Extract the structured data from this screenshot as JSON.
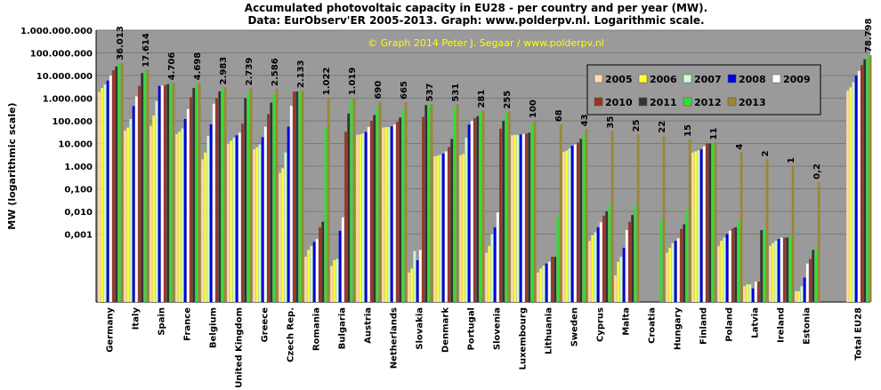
{
  "title_line1": "Accumulated photovoltaic capacity in EU28 - per country and per year (MW).",
  "title_line2": "Data: EurObserv'ER 2005-2013. Graph: www.polderpv.nl. Logarithmic scale.",
  "chart_data": {
    "type": "bar",
    "yscale": "log",
    "ylim": [
      0.001,
      1000000000
    ],
    "ylabel": "MW (logarithmic scale)",
    "yticks": [
      "1.000.000,000",
      "100.000,000",
      "10.000,000",
      "1.000,000",
      "100,000",
      "10,000",
      "1,000",
      "0,100",
      "0,010",
      "0,001"
    ],
    "yticks_raw": [
      "1.000.000.000",
      "100.000.000",
      "10.000.000",
      "1.000.000",
      "100.000",
      "10.000",
      "1.000",
      "0,100",
      "0,010",
      "0,001"
    ],
    "grid": true,
    "legend_position": "top-right",
    "watermark": "© Graph 2014 Peter J. Segaar / www.polderpv.nl",
    "categories": [
      "Germany",
      "Italy",
      "Spain",
      "France",
      "Belgium",
      "United Kingdom",
      "Greece",
      "Czech Rep.",
      "Romania",
      "Bulgaria",
      "Austria",
      "Netherlands",
      "Slovakia",
      "Denmark",
      "Portugal",
      "Slovenia",
      "Luxembourg",
      "Lithuania",
      "Sweden",
      "Cyprus",
      "Malta",
      "Croatia",
      "Hungary",
      "Finland",
      "Poland",
      "Latvia",
      "Ireland",
      "Estonia",
      "",
      "Total EU28"
    ],
    "value_labels": [
      "36.013",
      "17.614",
      "4.706",
      "4.698",
      "2.983",
      "2.739",
      "2.586",
      "2.133",
      "1.022",
      "1.019",
      "690",
      "665",
      "537",
      "531",
      "281",
      "255",
      "100",
      "68",
      "43",
      "35",
      "25",
      "22",
      "15",
      "11",
      "4",
      "2",
      "1",
      "0,2",
      "",
      "78.798"
    ],
    "series": [
      {
        "name": "2005",
        "color": "#ffd9a8",
        "values": [
          1900000,
          37000,
          60000,
          26000,
          2000,
          10000,
          5500,
          500,
          0.1,
          0.04,
          24000,
          51000,
          0.02,
          2700,
          3000,
          0.15,
          23000,
          0.02,
          4200,
          0.5,
          0.015,
          null,
          0.15,
          4000,
          0.3,
          0.005,
          0.3,
          0.003,
          null,
          2200000
        ]
      },
      {
        "name": "2006",
        "color": "#ffff33",
        "values": [
          2800000,
          50000,
          170000,
          33000,
          4000,
          13000,
          6800,
          800,
          0.2,
          0.07,
          25000,
          52000,
          0.03,
          2900,
          3400,
          0.3,
          24000,
          0.03,
          4800,
          0.9,
          0.06,
          null,
          0.25,
          4500,
          0.5,
          0.006,
          0.4,
          0.003,
          null,
          3000000
        ]
      },
      {
        "name": "2007",
        "color": "#ccffcc",
        "values": [
          4000000,
          120000,
          750000,
          46000,
          22000,
          18000,
          9000,
          4000,
          0.3,
          0.08,
          28000,
          53000,
          0.18,
          3200,
          18000,
          1.0,
          24000,
          0.04,
          6000,
          1.2,
          0.1,
          null,
          0.4,
          5000,
          0.7,
          0.006,
          0.5,
          0.005,
          null,
          5000000
        ]
      },
      {
        "name": "2008",
        "color": "#0000dd",
        "values": [
          6000000,
          450000,
          3500000,
          120000,
          70000,
          23000,
          19000,
          55000,
          0.45,
          1.4,
          32000,
          57000,
          0.07,
          3500,
          68000,
          2.0,
          25000,
          0.05,
          8000,
          2.0,
          0.25,
          null,
          0.5,
          5500,
          1.0,
          0.004,
          0.6,
          0.012,
          null,
          10000000
        ]
      },
      {
        "name": "2009",
        "color": "#ffffff",
        "values": [
          10000000,
          1200000,
          3600000,
          330000,
          570000,
          30000,
          55000,
          460000,
          0.6,
          5.5,
          53000,
          68000,
          0.2,
          4500,
          100000,
          9.0,
          26000,
          0.06,
          9000,
          3.3,
          1.5,
          null,
          0.65,
          7500,
          1.4,
          0.008,
          0.7,
          0.05,
          null,
          16000000
        ]
      },
      {
        "name": "2010",
        "color": "#993322",
        "values": [
          17000000,
          3500000,
          3800000,
          1100000,
          1000000,
          75000,
          200000,
          1950000,
          2.0,
          33000,
          100000,
          90000,
          150000,
          7000,
          130000,
          45000,
          27000,
          0.1,
          11000,
          6.5,
          3.5,
          null,
          1.7,
          10000,
          1.8,
          0.008,
          0.7,
          0.08,
          null,
          29000000
        ]
      },
      {
        "name": "2011",
        "color": "#333333",
        "values": [
          25000000,
          12800000,
          4200000,
          2800000,
          2000000,
          1000000,
          630000,
          1960000,
          3.5,
          210000,
          180000,
          140000,
          500000,
          16000,
          160000,
          100000,
          30000,
          0.1,
          16000,
          10,
          7,
          null,
          2.7,
          10000,
          2.0,
          1.5,
          0.7,
          0.2,
          null,
          52000000
        ]
      },
      {
        "name": "2012",
        "color": "#33dd33",
        "values": [
          33000000,
          16400000,
          4500000,
          4000000,
          2600000,
          1700000,
          1500000,
          2000000,
          50000,
          900000,
          420000,
          320000,
          520000,
          390000,
          230000,
          220000,
          76000,
          6,
          24000,
          17,
          18,
          4,
          12,
          11000,
          3.5,
          1.5,
          0.8,
          0.2,
          null,
          68000000
        ]
      },
      {
        "name": "2013",
        "color": "#998833",
        "values": [
          36013000,
          17614000,
          4706000,
          4698000,
          2983000,
          2739000,
          2586000,
          2133000,
          1022000,
          1019000,
          690000,
          665000,
          537000,
          531000,
          281000,
          255000,
          100000,
          68000,
          43000,
          35000,
          25000,
          22000,
          15000,
          11000,
          4000,
          2000,
          1000,
          200,
          null,
          78798000
        ]
      }
    ]
  }
}
